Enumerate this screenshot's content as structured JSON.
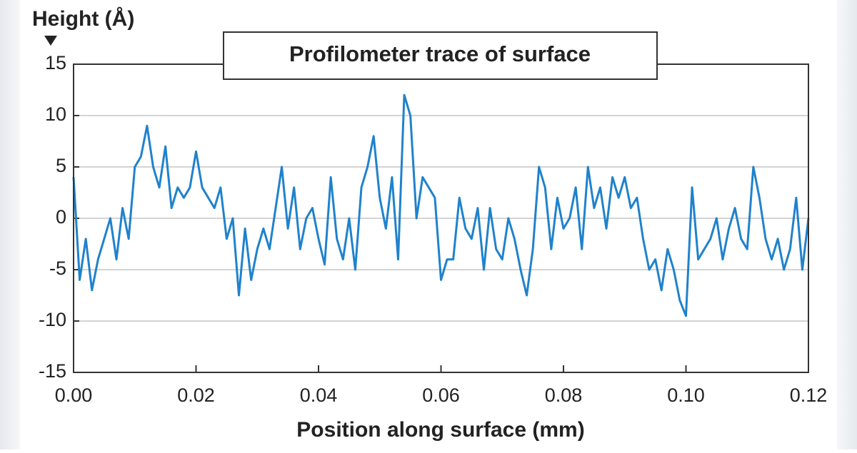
{
  "chart_data": {
    "type": "line",
    "title": "Profilometer trace of surface",
    "x_label": "Position along surface (mm)",
    "y_label": "Height (Å)",
    "xlim": [
      0,
      0.12
    ],
    "ylim": [
      -15,
      15
    ],
    "xticks": [
      {
        "value": 0,
        "label": "0.00"
      },
      0.02,
      0.04,
      0.06,
      0.08,
      {
        "value": 0.1,
        "label": "0.10"
      },
      0.12
    ],
    "yticks": [
      -15,
      -10,
      -5,
      0,
      5,
      10,
      15
    ],
    "grid": true,
    "series": [
      {
        "color": "#1f82cc",
        "x": [
          0,
          0.001,
          0.002,
          0.003,
          0.004,
          0.005,
          0.006,
          0.007,
          0.008,
          0.009,
          0.01,
          0.011,
          0.012,
          0.013,
          0.014,
          0.015,
          0.016,
          0.017,
          0.018,
          0.019,
          0.02,
          0.021,
          0.022,
          0.023,
          0.024,
          0.025,
          0.026,
          0.027,
          0.028,
          0.029,
          0.03,
          0.031,
          0.032,
          0.033,
          0.034,
          0.035,
          0.036,
          0.037,
          0.038,
          0.039,
          0.04,
          0.041,
          0.042,
          0.043,
          0.044,
          0.045,
          0.046,
          0.047,
          0.048,
          0.049,
          0.05,
          0.051,
          0.052,
          0.053,
          0.054,
          0.055,
          0.056,
          0.057,
          0.058,
          0.059,
          0.06,
          0.061,
          0.062,
          0.063,
          0.064,
          0.065,
          0.066,
          0.067,
          0.068,
          0.069,
          0.07,
          0.071,
          0.072,
          0.073,
          0.074,
          0.075,
          0.076,
          0.077,
          0.078,
          0.079,
          0.08,
          0.081,
          0.082,
          0.083,
          0.084,
          0.085,
          0.086,
          0.087,
          0.088,
          0.089,
          0.09,
          0.091,
          0.092,
          0.093,
          0.094,
          0.095,
          0.096,
          0.097,
          0.098,
          0.099,
          0.1,
          0.101,
          0.102,
          0.103,
          0.104,
          0.105,
          0.106,
          0.107,
          0.108,
          0.109,
          0.11,
          0.111,
          0.112,
          0.113,
          0.114,
          0.115,
          0.116,
          0.117,
          0.118,
          0.119,
          0.12
        ],
        "values": [
          4,
          -6,
          -2,
          -7,
          -4,
          -2,
          0,
          -4,
          1,
          -2,
          5,
          6,
          9,
          5,
          3,
          7,
          1,
          3,
          2,
          3,
          6.5,
          3,
          2,
          1,
          3,
          -2,
          0,
          -7.5,
          -1,
          -6,
          -3,
          -1,
          -3,
          1,
          5,
          -1,
          3,
          -3,
          0,
          1,
          -2,
          -4.5,
          4,
          -2,
          -4,
          0,
          -5,
          3,
          5,
          8,
          2,
          -1,
          4,
          -4,
          12,
          10,
          0,
          4,
          3,
          2,
          -6,
          -4,
          -4,
          2,
          -1,
          -2,
          1,
          -5,
          1,
          -3,
          -4,
          0,
          -2,
          -5,
          -7.5,
          -3,
          5,
          3,
          -3,
          2,
          -1,
          0,
          3,
          -3,
          5,
          1,
          3,
          -1,
          4,
          2,
          4,
          1,
          2,
          -2,
          -5,
          -4,
          -7,
          -3,
          -5,
          -8,
          -9.5,
          3,
          -4,
          -3,
          -2,
          0,
          -4,
          -1,
          1,
          -2,
          -3,
          5,
          2,
          -2,
          -4,
          -2,
          -5,
          -3,
          2,
          -5,
          0
        ]
      }
    ]
  }
}
